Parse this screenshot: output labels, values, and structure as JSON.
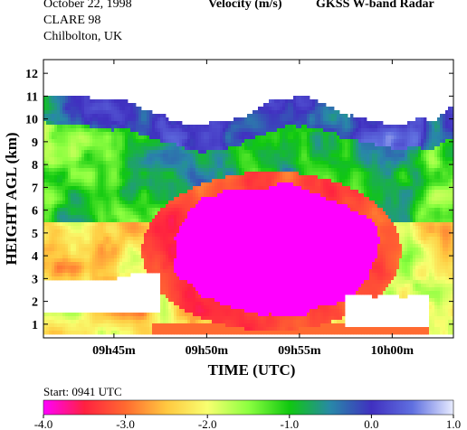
{
  "header": {
    "date": "October  22, 1998",
    "campaign": "CLARE 98",
    "location": "Chilbolton, UK",
    "quantity": "Velocity (m/s)",
    "instrument": "GKSS  W-band Radar"
  },
  "footer": {
    "start_label": "Start: 0941 UTC"
  },
  "chart_data": {
    "type": "heatmap",
    "title": "Velocity (m/s)",
    "xlabel": "TIME (UTC)",
    "ylabel": "HEIGHT AGL (km)",
    "x_ticks": [
      "09h45m",
      "09h50m",
      "09h55m",
      "10h00m"
    ],
    "x_tick_minutes": [
      45,
      50,
      55,
      60
    ],
    "xlim_minutes_after_0900": [
      41.2,
      63.3
    ],
    "y_ticks": [
      1,
      2,
      3,
      4,
      5,
      6,
      7,
      8,
      9,
      10,
      11,
      12
    ],
    "ylim": [
      0.4,
      12.6
    ],
    "colorbar": {
      "ticks": [
        "-4.0",
        "-3.0",
        "-2.0",
        "-1.0",
        "0.0",
        "1.0"
      ],
      "range": [
        -4.0,
        1.0
      ],
      "colors": [
        "#ff00ff",
        "#ff2040",
        "#ff6a30",
        "#ffc840",
        "#f8ff70",
        "#8cff40",
        "#10c810",
        "#2888a8",
        "#4030c0",
        "#6070e0",
        "#e8ecff"
      ]
    },
    "description_regions": {
      "echo_top_km": 10.5,
      "echo_base_km": 0.6,
      "strong_downdraft_core_value": -4.0,
      "strong_downdraft_core_km": [
        0.6,
        6.7
      ],
      "strong_downdraft_core_minutes": [
        48.5,
        58.5
      ]
    }
  },
  "colors": {
    "background": "#ffffff",
    "text": "#000000"
  }
}
